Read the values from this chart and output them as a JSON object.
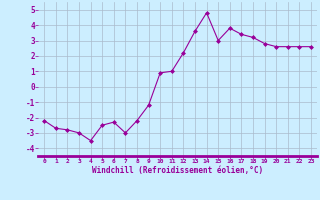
{
  "x": [
    0,
    1,
    2,
    3,
    4,
    5,
    6,
    7,
    8,
    9,
    10,
    11,
    12,
    13,
    14,
    15,
    16,
    17,
    18,
    19,
    20,
    21,
    22,
    23
  ],
  "y": [
    -2.2,
    -2.7,
    -2.8,
    -3.0,
    -3.5,
    -2.5,
    -2.3,
    -3.0,
    -2.2,
    -1.2,
    0.9,
    1.0,
    2.2,
    3.6,
    4.8,
    3.0,
    3.8,
    3.4,
    3.2,
    2.8,
    2.6,
    2.6,
    2.6,
    2.6
  ],
  "line_color": "#990099",
  "marker": "D",
  "marker_size": 2,
  "line_width": 0.8,
  "bg_color": "#cceeff",
  "grid_color": "#aabbcc",
  "xlabel": "Windchill (Refroidissement éolien,°C)",
  "xlabel_color": "#990099",
  "tick_color": "#990099",
  "ylim": [
    -4.5,
    5.5
  ],
  "yticks": [
    -4,
    -3,
    -2,
    -1,
    0,
    1,
    2,
    3,
    4,
    5
  ],
  "xlim": [
    -0.5,
    23.5
  ],
  "xticks": [
    0,
    1,
    2,
    3,
    4,
    5,
    6,
    7,
    8,
    9,
    10,
    11,
    12,
    13,
    14,
    15,
    16,
    17,
    18,
    19,
    20,
    21,
    22,
    23
  ]
}
